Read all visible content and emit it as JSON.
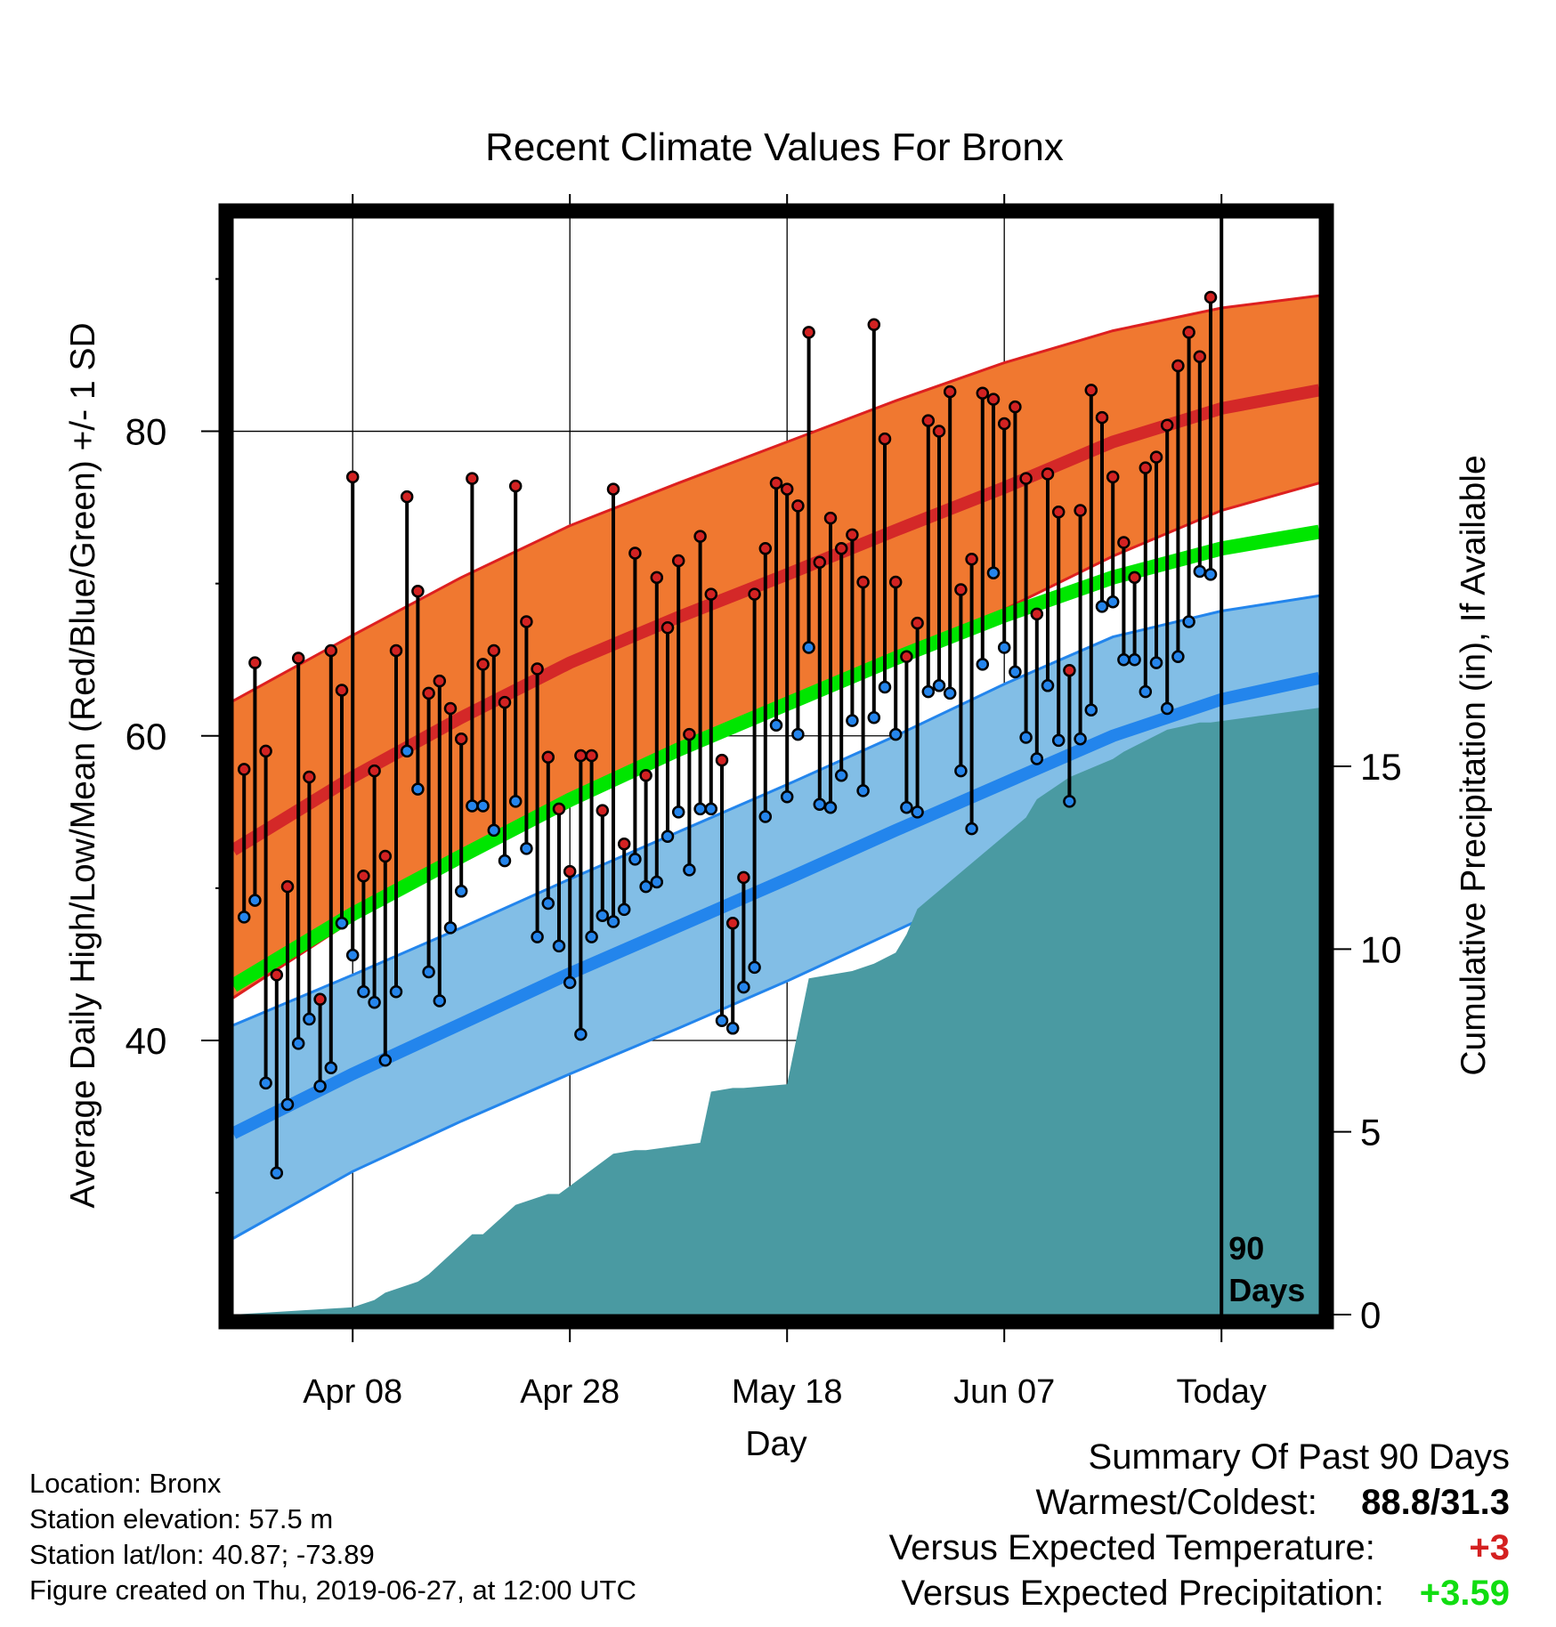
{
  "chart_data": {
    "type": "line",
    "title": "Recent Climate Values For Bronx",
    "xlabel": "Day",
    "ylabel": "Average Daily High/Low/Mean (Red/Blue/Green) +/- 1 SD",
    "y2label": "Cumulative Precipitation (in), If Available",
    "ylim": [
      22,
      94
    ],
    "y2lim": [
      0,
      30
    ],
    "xlim": [
      "2019-03-28",
      "2019-07-06"
    ],
    "x_ticks": [
      {
        "date": "2019-04-08",
        "label": "Apr 08"
      },
      {
        "date": "2019-04-28",
        "label": "Apr 28"
      },
      {
        "date": "2019-05-18",
        "label": "May 18"
      },
      {
        "date": "2019-06-07",
        "label": "Jun 07"
      },
      {
        "date": "2019-06-27",
        "label": "Today"
      }
    ],
    "y_ticks_labeled": [
      40,
      60,
      80
    ],
    "y_ticks_minor": [
      30,
      50,
      70,
      90
    ],
    "y2_ticks": [
      0,
      5,
      10,
      15
    ],
    "today_date": "2019-06-27",
    "today_marker_label": [
      "90",
      "Days"
    ],
    "grid": true,
    "normals": {
      "dates": [
        "2019-03-28",
        "2019-04-08",
        "2019-04-18",
        "2019-04-28",
        "2019-05-08",
        "2019-05-18",
        "2019-05-28",
        "2019-06-07",
        "2019-06-17",
        "2019-06-27",
        "2019-07-06"
      ],
      "high_mean": [
        52.5,
        57.3,
        61.2,
        64.8,
        67.8,
        70.6,
        73.5,
        76.3,
        79.3,
        81.5,
        82.7
      ],
      "high_upper": [
        62.3,
        66.6,
        70.4,
        73.8,
        76.6,
        79.3,
        82.0,
        84.5,
        86.6,
        88.1,
        88.9
      ],
      "high_lower": [
        42.8,
        47.9,
        51.9,
        55.8,
        59.0,
        62.0,
        65.1,
        68.3,
        71.8,
        74.8,
        76.6
      ],
      "mean_mean": [
        43.6,
        48.3,
        52.1,
        55.8,
        59.1,
        62.1,
        65.1,
        67.9,
        70.4,
        72.3,
        73.4
      ],
      "low_mean": [
        33.9,
        37.8,
        41.1,
        44.4,
        47.5,
        50.6,
        53.8,
        56.9,
        60.0,
        62.4,
        63.8
      ],
      "low_upper": [
        41.0,
        44.3,
        47.4,
        50.6,
        53.7,
        56.8,
        60.0,
        63.4,
        66.5,
        68.2,
        69.2
      ],
      "low_lower": [
        27.0,
        31.4,
        34.7,
        37.8,
        40.8,
        43.9,
        47.2,
        50.5,
        53.6,
        56.6,
        58.3
      ]
    },
    "observed_start": "2019-03-29",
    "observed_highs": [
      57.8,
      64.8,
      59.0,
      44.3,
      50.1,
      65.1,
      57.3,
      42.7,
      65.6,
      63.0,
      77.0,
      50.8,
      57.7,
      52.1,
      65.6,
      75.7,
      69.5,
      62.8,
      63.6,
      61.8,
      59.8,
      76.9,
      64.7,
      65.6,
      62.2,
      76.4,
      67.5,
      64.4,
      58.6,
      55.2,
      51.1,
      58.7,
      58.7,
      55.1,
      76.2,
      52.9,
      72.0,
      57.4,
      70.4,
      67.1,
      71.5,
      60.1,
      73.1,
      69.3,
      58.4,
      47.7,
      50.7,
      69.3,
      72.3,
      76.6,
      76.2,
      75.1,
      86.5,
      71.4,
      74.3,
      72.3,
      73.2,
      70.1,
      87.0,
      79.5,
      70.1,
      65.2,
      67.4,
      80.7,
      80.0,
      82.6,
      69.6,
      71.6,
      82.5,
      82.1,
      80.5,
      81.6,
      76.9,
      68.0,
      77.2,
      74.7,
      64.3,
      74.8,
      82.7,
      80.9,
      77.0,
      72.7,
      70.4,
      77.6,
      78.3,
      80.4,
      84.3,
      86.5,
      84.9,
      88.8
    ],
    "observed_lows": [
      48.1,
      49.2,
      37.2,
      31.3,
      35.8,
      39.8,
      41.4,
      37.0,
      38.2,
      47.7,
      45.6,
      43.2,
      42.5,
      38.7,
      43.2,
      59.0,
      56.5,
      44.5,
      42.6,
      47.4,
      49.8,
      55.4,
      55.4,
      53.8,
      51.8,
      55.7,
      52.6,
      46.8,
      49.0,
      46.2,
      43.8,
      40.4,
      46.8,
      48.2,
      47.8,
      48.6,
      51.9,
      50.1,
      50.4,
      53.4,
      55.0,
      51.2,
      55.2,
      55.2,
      41.3,
      40.8,
      43.5,
      44.8,
      54.7,
      60.7,
      56.0,
      60.1,
      65.8,
      55.5,
      55.3,
      57.4,
      61.0,
      56.4,
      61.2,
      63.2,
      60.1,
      55.3,
      55.0,
      62.9,
      63.3,
      62.8,
      57.7,
      53.9,
      64.7,
      70.7,
      65.8,
      64.2,
      59.9,
      58.5,
      63.3,
      59.7,
      55.7,
      59.8,
      61.7,
      68.5,
      68.8,
      65.0,
      65.0,
      62.9,
      64.8,
      61.8,
      65.2,
      67.5,
      70.8,
      70.6
    ],
    "precip": {
      "dates": [
        "2019-03-28",
        "2019-04-08",
        "2019-04-10",
        "2019-04-11",
        "2019-04-14",
        "2019-04-15",
        "2019-04-19",
        "2019-04-20",
        "2019-04-23",
        "2019-04-26",
        "2019-04-27",
        "2019-05-02",
        "2019-05-04",
        "2019-05-05",
        "2019-05-10",
        "2019-05-11",
        "2019-05-13",
        "2019-05-14",
        "2019-05-18",
        "2019-05-20",
        "2019-05-22",
        "2019-05-24",
        "2019-05-26",
        "2019-05-28",
        "2019-05-29",
        "2019-05-30",
        "2019-06-09",
        "2019-06-10",
        "2019-06-11",
        "2019-06-13",
        "2019-06-17",
        "2019-06-18",
        "2019-06-20",
        "2019-06-22",
        "2019-06-25",
        "2019-06-26",
        "2019-07-06"
      ],
      "values": [
        0.0,
        0.2,
        0.4,
        0.6,
        0.9,
        1.1,
        2.2,
        2.2,
        3.0,
        3.3,
        3.3,
        4.4,
        4.5,
        4.5,
        4.7,
        6.1,
        6.2,
        6.2,
        6.3,
        9.2,
        9.3,
        9.4,
        9.6,
        9.9,
        10.4,
        11.1,
        13.6,
        14.1,
        14.3,
        14.7,
        15.2,
        15.4,
        15.7,
        16.0,
        16.2,
        16.2,
        16.6
      ]
    }
  },
  "info": {
    "location": "Location: Bronx",
    "elevation": "Station elevation: 57.5 m",
    "latlon": "Station lat/lon: 40.87; -73.89",
    "created": "Figure created on Thu, 2019-06-27, at 12:00 UTC"
  },
  "summary": {
    "heading": "Summary Of Past 90 Days",
    "warm_cold_label": "Warmest/Coldest:",
    "warm_cold_value": "88.8/31.3",
    "temp_label": "Versus Expected Temperature:",
    "temp_value": "+3",
    "precip_label": "Versus Expected Precipitation:",
    "precip_value": "+3.59"
  },
  "colors": {
    "high_band": "#f07830",
    "high_line": "#d42828",
    "high_edge": "#dd2020",
    "low_band": "#82bee6",
    "low_line": "#2385ec",
    "low_edge": "#2385ec",
    "mean_line": "#00e600",
    "precip_fill": "#4a9aa2",
    "high_dot": "#d22222",
    "low_dot": "#2585ec",
    "temp_anomaly": "#d42020",
    "precip_anomaly": "#11dd11"
  }
}
